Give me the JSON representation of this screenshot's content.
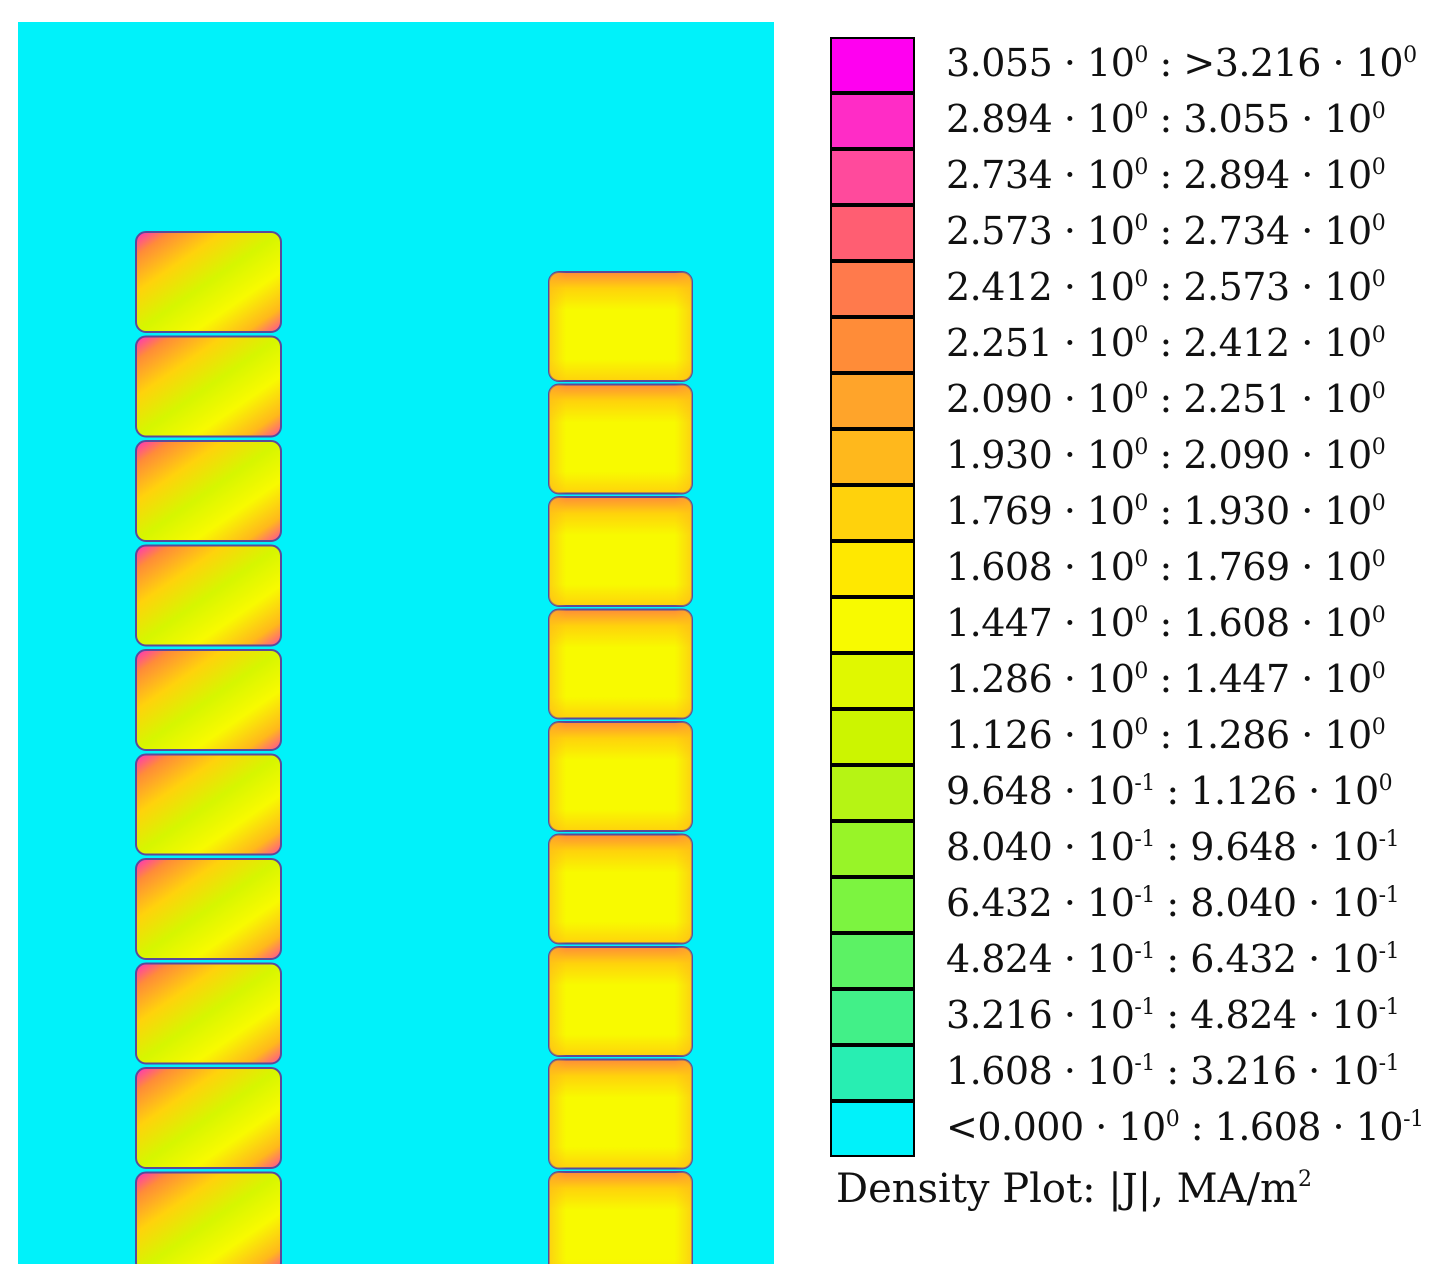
{
  "chart_data": {
    "type": "heatmap",
    "title": "Density Plot: |J|, MA/m²",
    "background_color": "#00f2fa",
    "legend": {
      "placement": "right",
      "bins": [
        {
          "lower": "3.055 · 10⁰",
          "upper": ">3.216 · 10⁰",
          "color": "#ff00f0"
        },
        {
          "lower": "2.894 · 10⁰",
          "upper": "3.055 · 10⁰",
          "color": "#ff2cc6"
        },
        {
          "lower": "2.734 · 10⁰",
          "upper": "2.894 · 10⁰",
          "color": "#ff4a9c"
        },
        {
          "lower": "2.573 · 10⁰",
          "upper": "2.734 · 10⁰",
          "color": "#ff5e72"
        },
        {
          "lower": "2.412 · 10⁰",
          "upper": "2.573 · 10⁰",
          "color": "#ff7a4c"
        },
        {
          "lower": "2.251 · 10⁰",
          "upper": "2.412 · 10⁰",
          "color": "#ff8c38"
        },
        {
          "lower": "2.090 · 10⁰",
          "upper": "2.251 · 10⁰",
          "color": "#ffa42a"
        },
        {
          "lower": "1.930 · 10⁰",
          "upper": "2.090 · 10⁰",
          "color": "#ffb81c"
        },
        {
          "lower": "1.769 · 10⁰",
          "upper": "1.930 · 10⁰",
          "color": "#ffd20c"
        },
        {
          "lower": "1.608 · 10⁰",
          "upper": "1.769 · 10⁰",
          "color": "#ffe800"
        },
        {
          "lower": "1.447 · 10⁰",
          "upper": "1.608 · 10⁰",
          "color": "#f8fa00"
        },
        {
          "lower": "1.286 · 10⁰",
          "upper": "1.447 · 10⁰",
          "color": "#e0f800"
        },
        {
          "lower": "1.126 · 10⁰",
          "upper": "1.286 · 10⁰",
          "color": "#ccf500"
        },
        {
          "lower": "9.648 · 10⁻¹",
          "upper": "1.126 · 10⁰",
          "color": "#b6f414"
        },
        {
          "lower": "8.040 · 10⁻¹",
          "upper": "9.648 · 10⁻¹",
          "color": "#98f428"
        },
        {
          "lower": "6.432 · 10⁻¹",
          "upper": "8.040 · 10⁻¹",
          "color": "#7cf440"
        },
        {
          "lower": "4.824 · 10⁻¹",
          "upper": "6.432 · 10⁻¹",
          "color": "#5cf264"
        },
        {
          "lower": "3.216 · 10⁻¹",
          "upper": "4.824 · 10⁻¹",
          "color": "#42f088"
        },
        {
          "lower": "1.608 · 10⁻¹",
          "upper": "3.216 · 10⁻¹",
          "color": "#28eeb2"
        },
        {
          "lower": "<0.000 · 10⁰",
          "upper": "1.608 · 10⁻¹",
          "color": "#00f2fa"
        }
      ]
    },
    "columns": [
      {
        "id": "left",
        "blocks": 10,
        "gradient": "magenta-corner to yellow-green"
      },
      {
        "id": "right",
        "blocks": 9,
        "gradient": "orange-edge to yellow"
      }
    ]
  }
}
